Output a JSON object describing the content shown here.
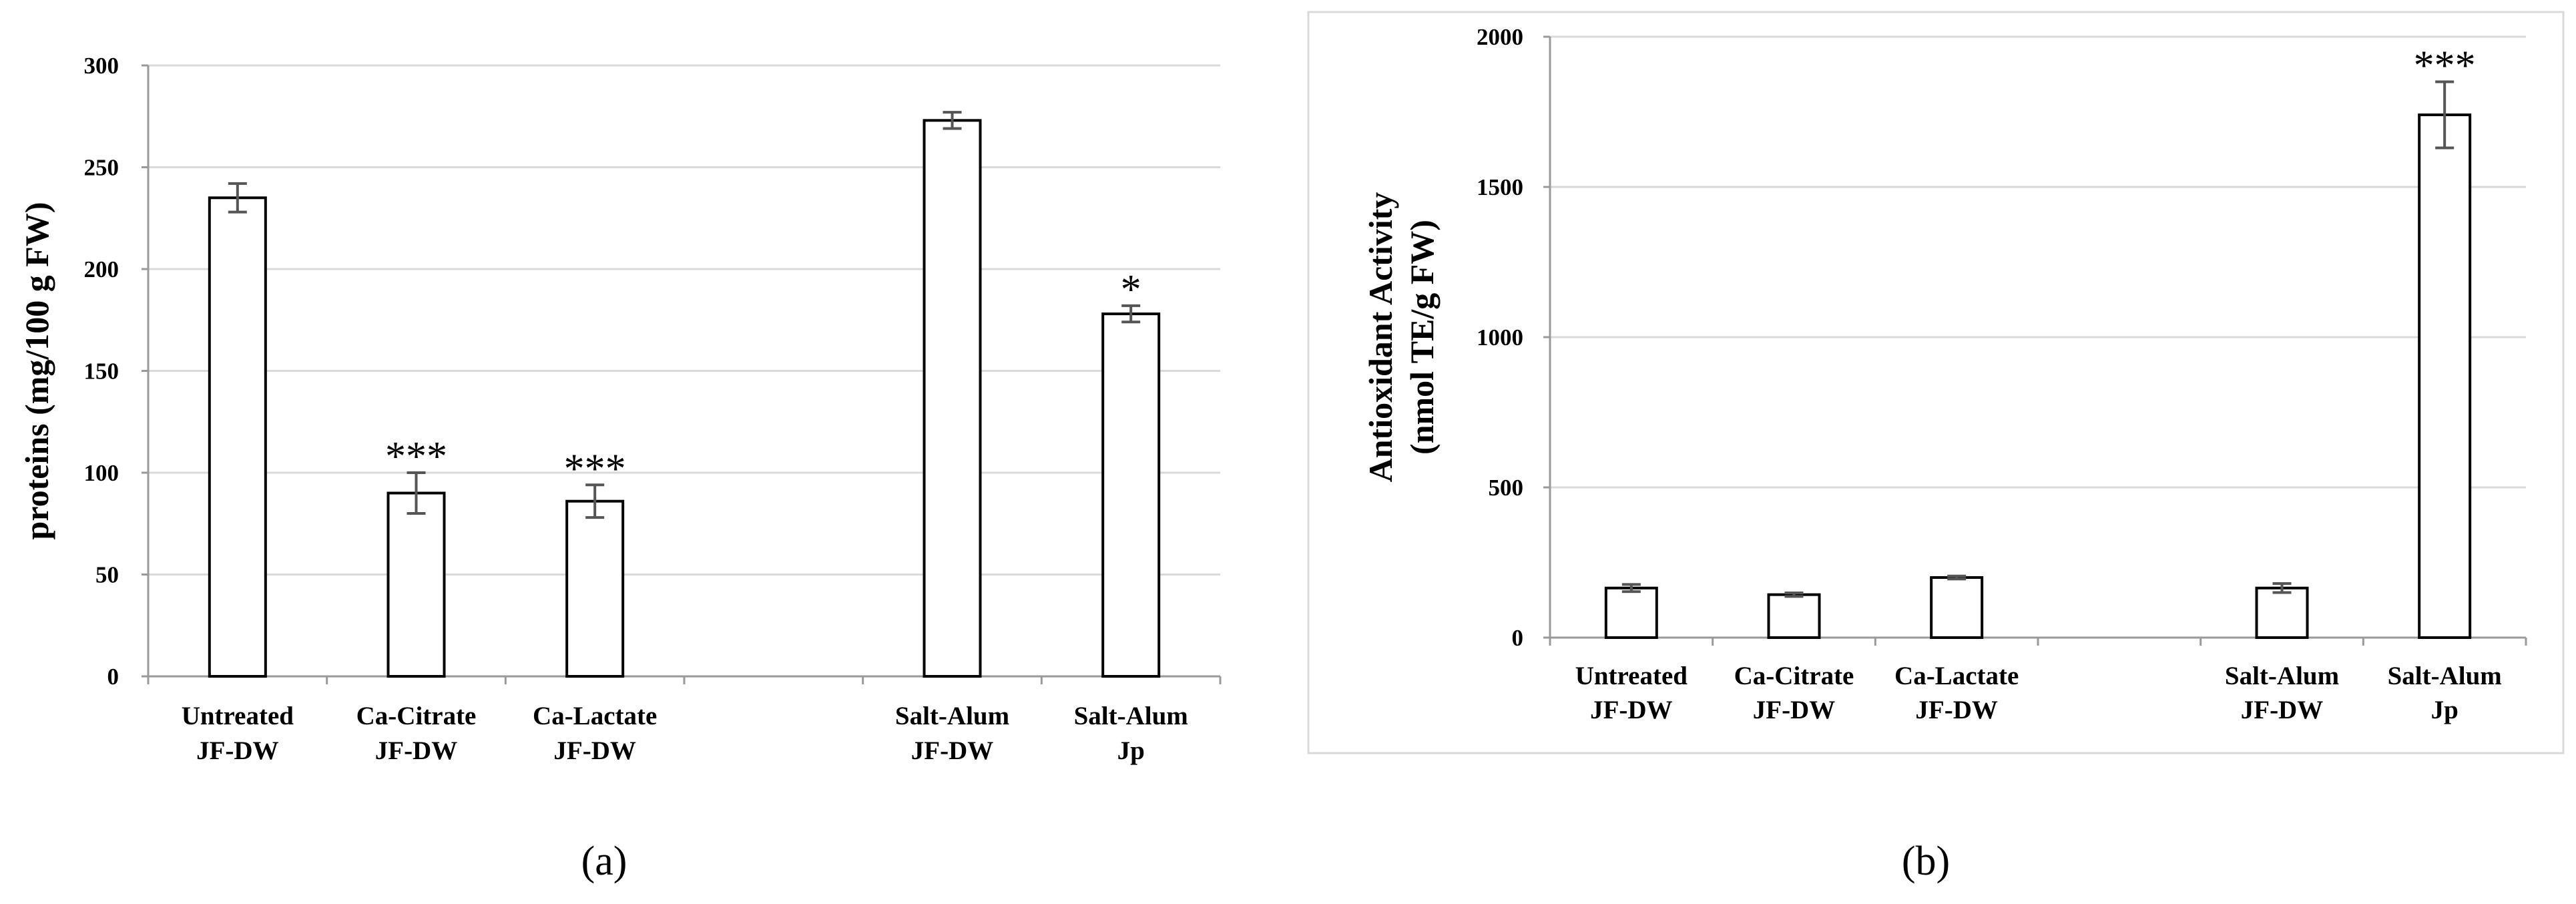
{
  "chart_data": [
    {
      "type": "bar",
      "panel_label": "(a)",
      "ylabel": "proteins (mg/100 g FW)",
      "ylim": [
        0,
        300
      ],
      "yticks": [
        0,
        50,
        100,
        150,
        200,
        250,
        300
      ],
      "grid": true,
      "slots": 6,
      "bars": [
        {
          "slot": 0,
          "category": [
            "Untreated",
            "JF-DW"
          ],
          "value": 235,
          "error": 7,
          "sig": ""
        },
        {
          "slot": 1,
          "category": [
            "Ca-Citrate",
            "JF-DW"
          ],
          "value": 90,
          "error": 10,
          "sig": "***"
        },
        {
          "slot": 2,
          "category": [
            "Ca-Lactate",
            "JF-DW"
          ],
          "value": 86,
          "error": 8,
          "sig": "***"
        },
        {
          "slot": 4,
          "category": [
            "Salt-Alum",
            "JF-DW"
          ],
          "value": 273,
          "error": 4,
          "sig": ""
        },
        {
          "slot": 5,
          "category": [
            "Salt-Alum",
            "Jp"
          ],
          "value": 178,
          "error": 4,
          "sig": "*"
        }
      ]
    },
    {
      "type": "bar",
      "panel_label": "(b)",
      "ylabel": [
        "Antioxidant Activity",
        "(nmol TE/g FW)"
      ],
      "ylim": [
        0,
        2000
      ],
      "yticks": [
        0,
        500,
        1000,
        1500,
        2000
      ],
      "grid": true,
      "slots": 6,
      "bars": [
        {
          "slot": 0,
          "category": [
            "Untreated",
            "JF-DW"
          ],
          "value": 165,
          "error": 12,
          "sig": ""
        },
        {
          "slot": 1,
          "category": [
            "Ca-Citrate",
            "JF-DW"
          ],
          "value": 143,
          "error": 6,
          "sig": ""
        },
        {
          "slot": 2,
          "category": [
            "Ca-Lactate",
            "JF-DW"
          ],
          "value": 200,
          "error": 5,
          "sig": ""
        },
        {
          "slot": 4,
          "category": [
            "Salt-Alum",
            "JF-DW"
          ],
          "value": 165,
          "error": 15,
          "sig": ""
        },
        {
          "slot": 5,
          "category": [
            "Salt-Alum",
            "Jp"
          ],
          "value": 1740,
          "error": 110,
          "sig": "***"
        }
      ]
    }
  ]
}
